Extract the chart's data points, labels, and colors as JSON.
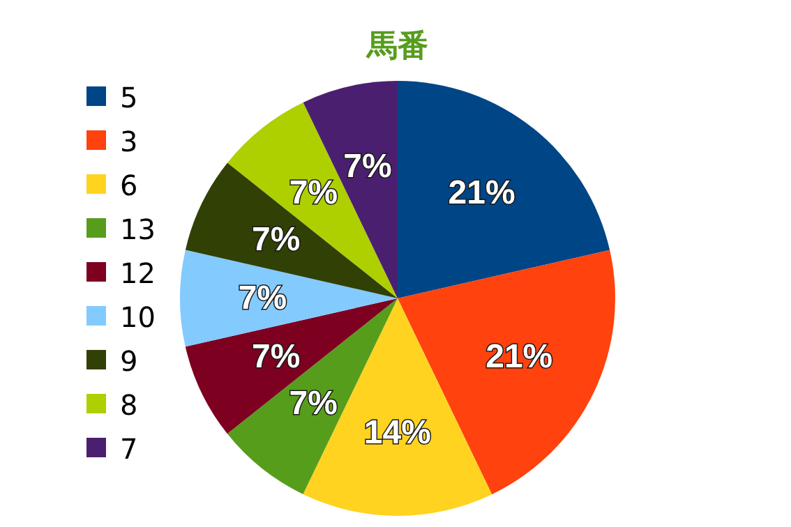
{
  "chart_data": {
    "type": "pie",
    "title": "馬番",
    "categories": [
      "5",
      "3",
      "6",
      "13",
      "12",
      "10",
      "9",
      "8",
      "7"
    ],
    "values": [
      21.43,
      21.43,
      14.29,
      7.14,
      7.14,
      7.14,
      7.14,
      7.14,
      7.14
    ],
    "value_labels": [
      "21%",
      "21%",
      "14%",
      "7%",
      "7%",
      "7%",
      "7%",
      "7%",
      "7%"
    ],
    "colors": [
      "#004586",
      "#ff420e",
      "#ffd320",
      "#579d1c",
      "#7e0021",
      "#83caff",
      "#314004",
      "#aecf00",
      "#4b1f6f"
    ],
    "legend": "left"
  }
}
